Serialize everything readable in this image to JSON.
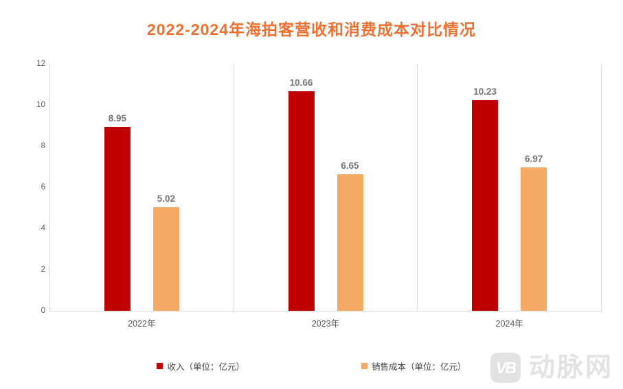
{
  "chart_data": {
    "type": "bar",
    "title": "2022-2024年海拍客营收和消费成本对比情况",
    "title_color": "#ee7031",
    "categories": [
      "2022年",
      "2023年",
      "2024年"
    ],
    "series": [
      {
        "name": "收入（单位：亿元）",
        "color": "#c00000",
        "values": [
          8.95,
          10.66,
          10.23
        ]
      },
      {
        "name": "销售成本（单位：亿元）",
        "color": "#f4a966",
        "values": [
          5.02,
          6.65,
          6.97
        ]
      }
    ],
    "xlabel": "",
    "ylabel": "",
    "ylim": [
      0,
      12
    ],
    "yticks": [
      0,
      2,
      4,
      6,
      8,
      10,
      12
    ],
    "grid": "vertical-category-separators",
    "gridline_color": "#d9d9d9",
    "axis_label_color": "#595959",
    "data_label_color": "#757575",
    "data_labels": true,
    "legend_position": "bottom"
  },
  "watermark": {
    "logo_text": "VB",
    "brand_text": "动脉网"
  }
}
